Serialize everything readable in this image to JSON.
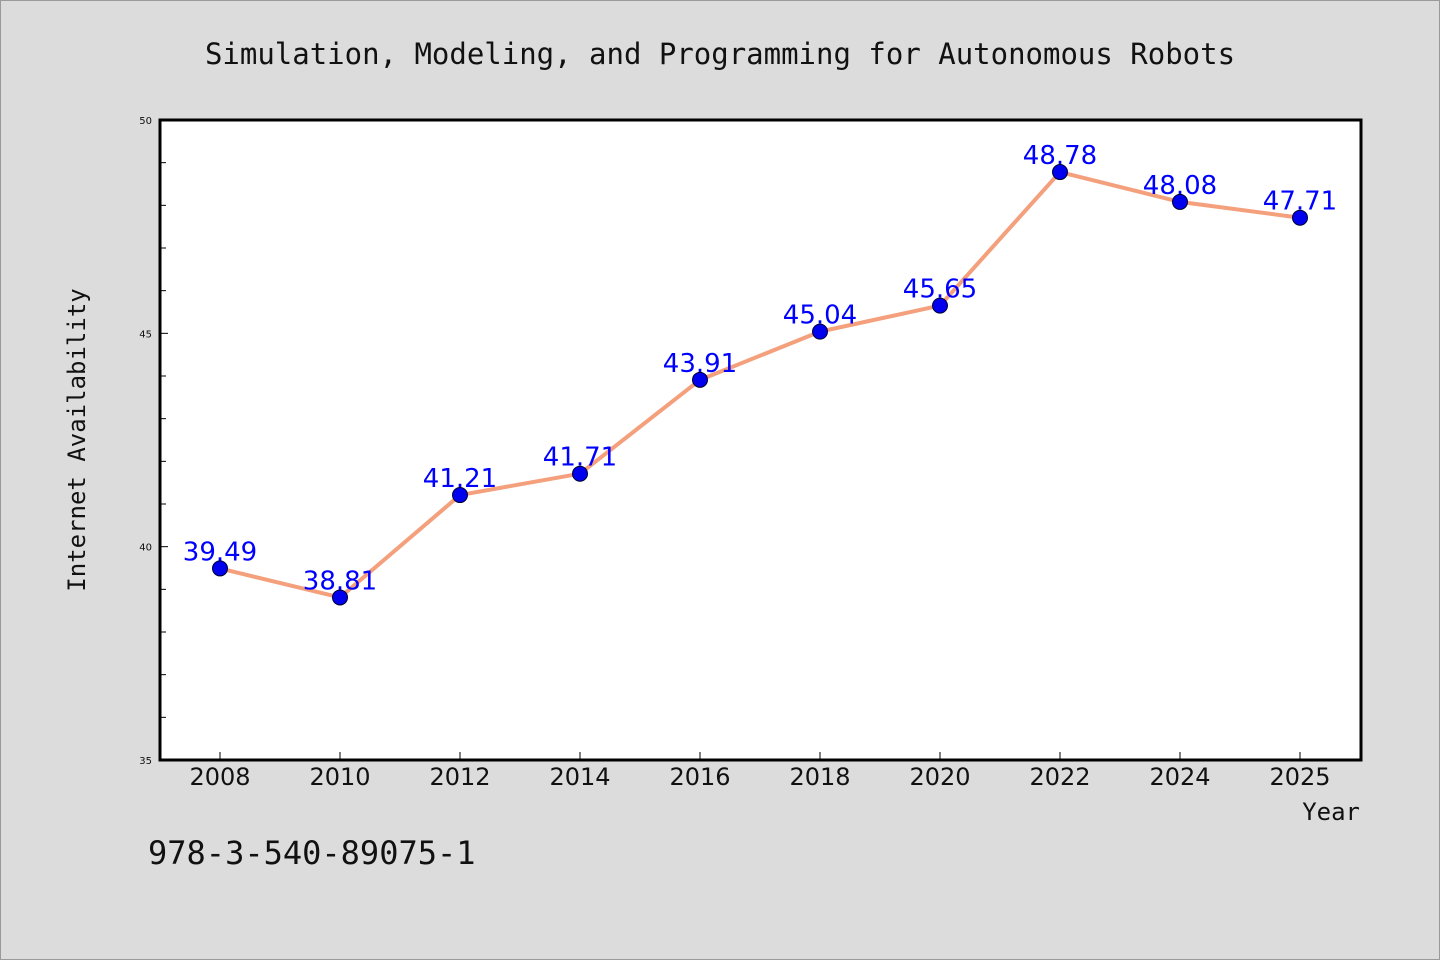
{
  "chart_data": {
    "type": "line",
    "title": "Simulation, Modeling, and Programming for Autonomous Robots",
    "xlabel": "Year",
    "ylabel": "Internet Availability",
    "categories": [
      "2008",
      "2010",
      "2012",
      "2014",
      "2016",
      "2018",
      "2020",
      "2022",
      "2024",
      "2025"
    ],
    "series": [
      {
        "values": [
          39.49,
          38.81,
          41.21,
          41.71,
          43.91,
          45.04,
          45.65,
          48.78,
          48.08,
          47.71
        ]
      }
    ],
    "data_labels": [
      "39.49",
      "38.81",
      "41.21",
      "41.71",
      "43.91",
      "45.04",
      "45.65",
      "48.78",
      "48.08",
      "47.71"
    ],
    "ylim": [
      35,
      50
    ],
    "y_ticks": [
      "35",
      "40",
      "45",
      "50"
    ],
    "grid": false,
    "colors": {
      "line": "#f4a07c",
      "marker": "#0000ee",
      "data_label": "#0000ff",
      "background": "#dcdcdc",
      "plot_area": "#ffffff"
    }
  },
  "footnote": "978-3-540-89075-1"
}
